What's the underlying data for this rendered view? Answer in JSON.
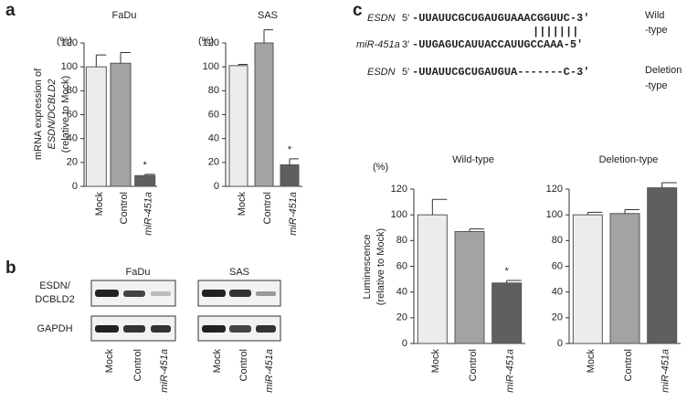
{
  "panel_labels": [
    "a",
    "b",
    "c"
  ],
  "chart_data": [
    {
      "type": "bar",
      "title": "FaDu",
      "unit": "(%)",
      "y_label": [
        "mRNA expression of",
        "ESDN/DCBLD2",
        "(relative to Mock)"
      ],
      "categories": [
        "Mock",
        "Control",
        "miR-451a"
      ],
      "values": [
        100,
        103,
        9
      ],
      "errors": [
        10,
        9,
        1
      ],
      "colors": [
        "#ececec",
        "#a3a3a3",
        "#5f5f5f"
      ],
      "value_annotations": [
        null,
        null,
        "*"
      ],
      "ylim": [
        0,
        120
      ],
      "yticks": [
        0,
        20,
        40,
        60,
        80,
        100,
        120
      ]
    },
    {
      "type": "bar",
      "title": "SAS",
      "unit": "(%)",
      "categories": [
        "Mock",
        "Control",
        "miR-451a"
      ],
      "values": [
        101,
        120,
        18
      ],
      "errors": [
        1,
        11,
        5
      ],
      "colors": [
        "#ececec",
        "#a3a3a3",
        "#5f5f5f"
      ],
      "value_annotations": [
        null,
        null,
        "*"
      ],
      "ylim": [
        0,
        120
      ],
      "yticks": [
        0,
        20,
        40,
        60,
        80,
        100,
        120
      ]
    },
    {
      "type": "bar",
      "title": "Wild-type",
      "unit": "(%)",
      "y_label": [
        "Luminescence",
        "(relative to Mock)"
      ],
      "categories": [
        "Mock",
        "Control",
        "miR-451a"
      ],
      "values": [
        100,
        87,
        47
      ],
      "errors": [
        12,
        2,
        2
      ],
      "colors": [
        "#ececec",
        "#a3a3a3",
        "#5f5f5f"
      ],
      "value_annotations": [
        null,
        null,
        "*"
      ],
      "ylim": [
        0,
        120
      ],
      "yticks": [
        0,
        20,
        40,
        60,
        80,
        100,
        120
      ]
    },
    {
      "type": "bar",
      "title": "Deletion-type",
      "categories": [
        "Mock",
        "Control",
        "miR-451a"
      ],
      "values": [
        100,
        101,
        121
      ],
      "errors": [
        2,
        3,
        4
      ],
      "colors": [
        "#ececec",
        "#a3a3a3",
        "#5f5f5f"
      ],
      "ylim": [
        0,
        120
      ],
      "yticks": [
        0,
        20,
        40,
        60,
        80,
        100,
        120
      ]
    }
  ],
  "blot": {
    "cell_lines": [
      "FaDu",
      "SAS"
    ],
    "rows": [
      [
        "ESDN/",
        "DCBLD2"
      ],
      [
        "GAPDH"
      ]
    ],
    "lanes": [
      "Mock",
      "Control",
      "miR-451a"
    ]
  },
  "sequence": {
    "rows": [
      {
        "name": "ESDN",
        "end": "5′",
        "seq": "-UUAUUCGCUGAUGUAAACGGUUC-3′",
        "type": [
          "Wild",
          "-type"
        ]
      },
      {
        "name": "miR-451a",
        "end": "3′",
        "seq": "-UUGAGUCAUUACCAUUGCCAAA-5′"
      },
      {
        "name": "ESDN",
        "end": "5′",
        "seq": "-UUAUUCGCUGAUGUA-------C-3′",
        "type": [
          "Deletion",
          "-type"
        ]
      }
    ],
    "pairing": "|||||||"
  }
}
